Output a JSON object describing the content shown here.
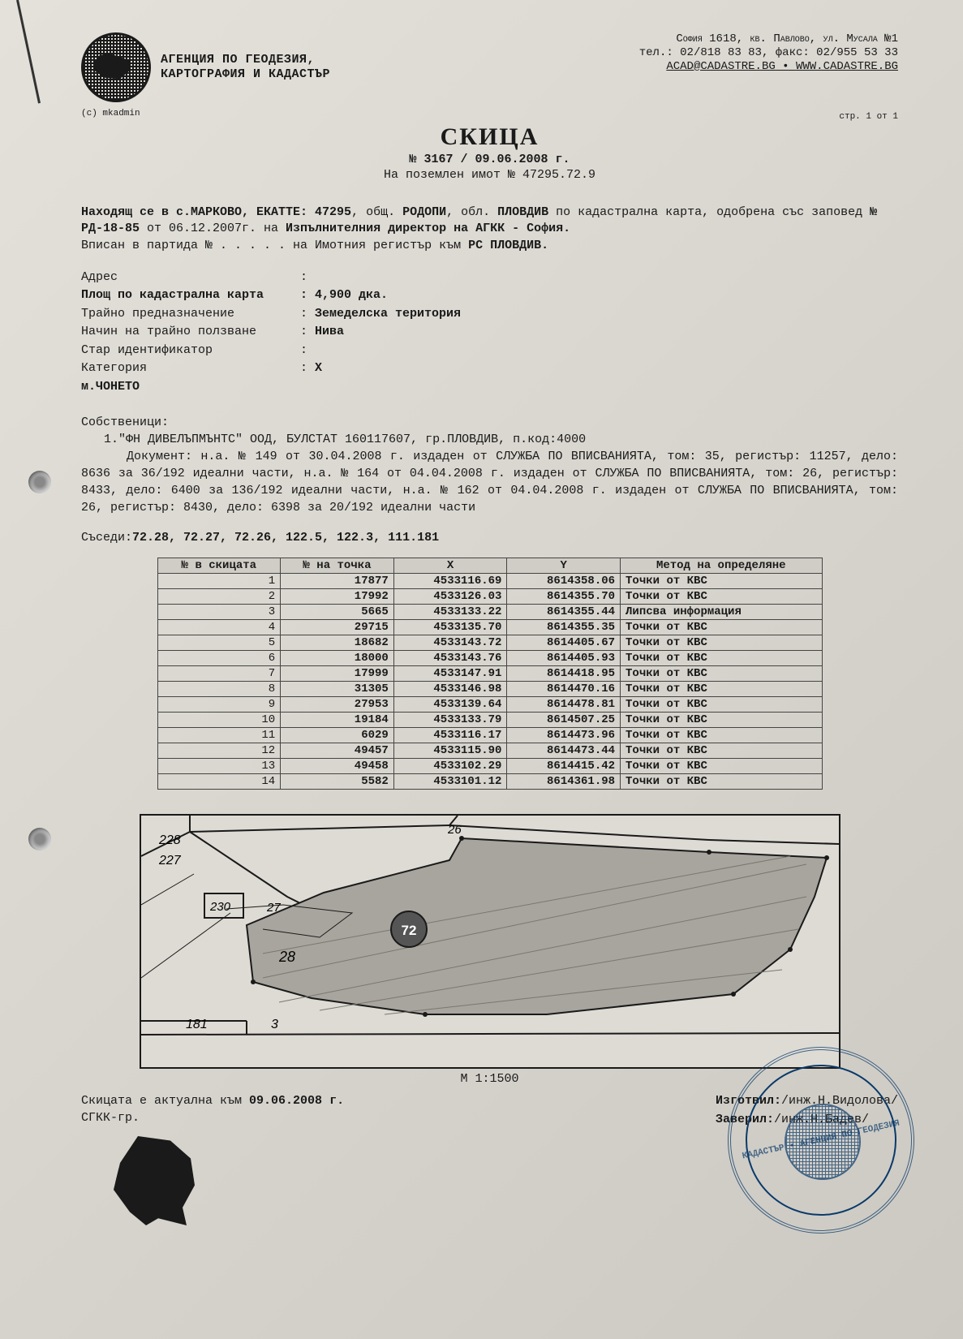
{
  "header": {
    "agency_line1": "АГЕНЦИЯ ПО ГЕОДЕЗИЯ,",
    "agency_line2": "КАРТОГРАФИЯ И КАДАСТЪР",
    "addr_line1": "София 1618, кв. Павлово, ул. Мусала №1",
    "addr_line2": "тел.: 02/818 83 83, факс: 02/955 53 33",
    "addr_line3": "ACAD@CADASTRE.BG • WWW.CADASTRE.BG",
    "copyright": "(c) mkadmin",
    "page": "стр. 1 от 1"
  },
  "title": "СКИЦА",
  "subtitle": "№ 3167 / 09.06.2008 г.",
  "subtitle2": "На поземлен имот № 47295.72.9",
  "intro": {
    "p1a": "Находящ се в с.МАРКОВО, ЕКАТТЕ: 47295",
    "p1b": ", общ. ",
    "p1_obsht": "РОДОПИ",
    "p1c": ", обл. ",
    "p1_obl": "ПЛОВДИВ",
    "p1d": " по кадастрална карта, одобрена със заповед ",
    "p1_order": "№ РД-18-85",
    "p1e": " от 06.12.2007г. на ",
    "p1_dir": "Изпълнителния директор на АГКК - София.",
    "p2a": "Вписан в партида № . . . . . на Имотния регистър към ",
    "p2b": "РС ПЛОВДИВ."
  },
  "props": {
    "addr_lbl": "Адрес",
    "addr_val": "",
    "area_lbl": "Площ по кадастрална карта",
    "area_val": "4,900 дка.",
    "purpose_lbl": "Трайно предназначение",
    "purpose_val": "Земеделска територия",
    "use_lbl": "Начин на трайно ползване",
    "use_val": "Нива",
    "oldid_lbl": "Стар идентификатор",
    "oldid_val": "",
    "cat_lbl": "Категория",
    "cat_val": "X",
    "loc_lbl": "м.ЧОНЕТО"
  },
  "owners": {
    "heading": "Собственици:",
    "line1": "1.\"ФН ДИВЕЛЪПМЪНТС\" ООД, БУЛСТАТ 160117607, гр.ПЛОВДИВ, п.код:4000",
    "doc": "Документ: н.а. № 149 от 30.04.2008 г. издаден от СЛУЖБА ПО ВПИСВАНИЯТА, том: 35, регистър: 11257, дело: 8636 за 36/192 идеални части, н.а. № 164 от 04.04.2008 г. издаден от СЛУЖБА ПО ВПИСВАНИЯТА, том: 26, регистър: 8433, дело: 6400 за 136/192 идеални части, н.а. № 162 от 04.04.2008 г. издаден от СЛУЖБА ПО ВПИСВАНИЯТА, том: 26, регистър: 8430, дело: 6398 за 20/192 идеални части"
  },
  "neighbors": {
    "lbl": "Съседи:",
    "val": "72.28, 72.27, 72.26, 122.5, 122.3, 111.181"
  },
  "coords": {
    "headers": {
      "n": "№ в скицата",
      "pt": "№ на точка",
      "x": "X",
      "y": "Y",
      "m": "Метод на определяне"
    },
    "rows": [
      {
        "n": "1",
        "pt": "17877",
        "x": "4533116.69",
        "y": "8614358.06",
        "m": "Точки от КВС"
      },
      {
        "n": "2",
        "pt": "17992",
        "x": "4533126.03",
        "y": "8614355.70",
        "m": "Точки от КВС"
      },
      {
        "n": "3",
        "pt": "5665",
        "x": "4533133.22",
        "y": "8614355.44",
        "m": "Липсва информация"
      },
      {
        "n": "4",
        "pt": "29715",
        "x": "4533135.70",
        "y": "8614355.35",
        "m": "Точки от КВС"
      },
      {
        "n": "5",
        "pt": "18682",
        "x": "4533143.72",
        "y": "8614405.67",
        "m": "Точки от КВС"
      },
      {
        "n": "6",
        "pt": "18000",
        "x": "4533143.76",
        "y": "8614405.93",
        "m": "Точки от КВС"
      },
      {
        "n": "7",
        "pt": "17999",
        "x": "4533147.91",
        "y": "8614418.95",
        "m": "Точки от КВС"
      },
      {
        "n": "8",
        "pt": "31305",
        "x": "4533146.98",
        "y": "8614470.16",
        "m": "Точки от КВС"
      },
      {
        "n": "9",
        "pt": "27953",
        "x": "4533139.64",
        "y": "8614478.81",
        "m": "Точки от КВС"
      },
      {
        "n": "10",
        "pt": "19184",
        "x": "4533133.79",
        "y": "8614507.25",
        "m": "Точки от КВС"
      },
      {
        "n": "11",
        "pt": "6029",
        "x": "4533116.17",
        "y": "8614473.96",
        "m": "Точки от КВС"
      },
      {
        "n": "12",
        "pt": "49457",
        "x": "4533115.90",
        "y": "8614473.44",
        "m": "Точки от КВС"
      },
      {
        "n": "13",
        "pt": "49458",
        "x": "4533102.29",
        "y": "8614415.42",
        "m": "Точки от КВС"
      },
      {
        "n": "14",
        "pt": "5582",
        "x": "4533101.12",
        "y": "8614361.98",
        "m": "Точки от КВС"
      }
    ]
  },
  "map": {
    "scale": "М 1:1500",
    "labels": {
      "l228": "228",
      "l227": "227",
      "l230": "230",
      "l27": "27",
      "l28": "28",
      "l181": "181",
      "l3": "3",
      "l26": "26",
      "l72": "72"
    },
    "colors": {
      "border": "#1a1a1a",
      "parcel_fill": "#a8a59e",
      "parcel_stroke": "#1a1a1a",
      "thin": "#1a1a1a"
    }
  },
  "footer": {
    "left1": "Скицата е актуална към ",
    "left1b": "09.06.2008 г.",
    "left2": "СГКК-гр.",
    "right1_lbl": "Изготвил:",
    "right1_val": "/инж.Н.Видолова/",
    "right2_lbl": "Заверил:",
    "right2_val": "/инж.Н.Бадев/"
  },
  "stamp_text": "КАДАСТЪР • АГЕНЦИЯ ПО ГЕОДЕЗИЯ"
}
